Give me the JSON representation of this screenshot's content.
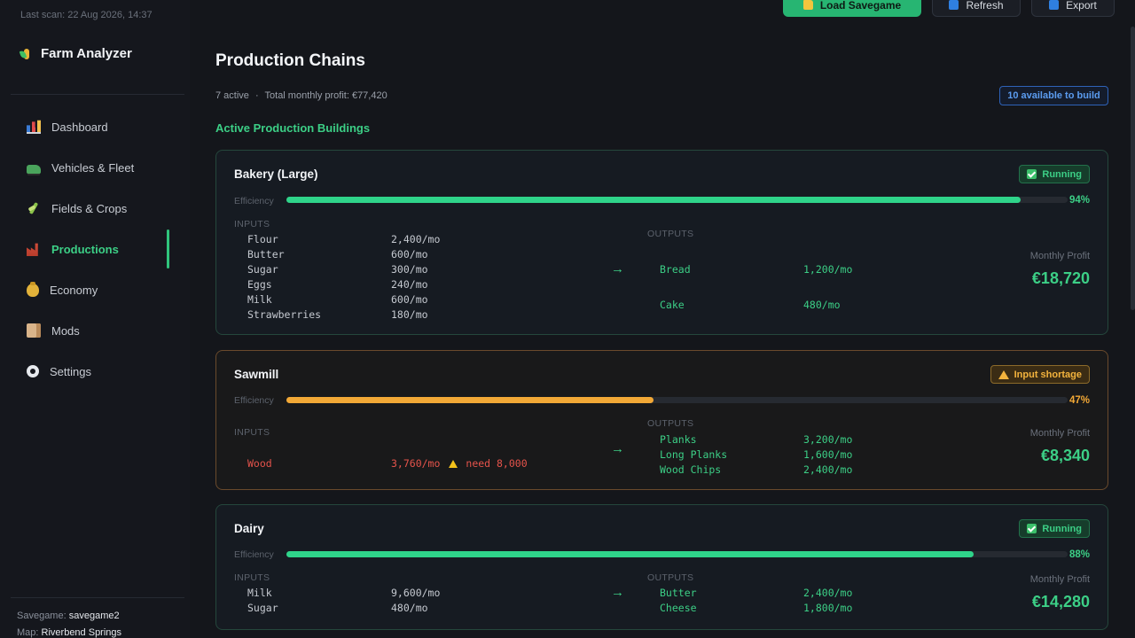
{
  "sidebar": {
    "last_scan": "Last scan: 22 Aug 2026, 14:37",
    "brand": "Farm Analyzer",
    "items": [
      {
        "label": "Dashboard",
        "icon": "chart-icon"
      },
      {
        "label": "Vehicles & Fleet",
        "icon": "tractor-icon"
      },
      {
        "label": "Fields & Crops",
        "icon": "wheat-icon"
      },
      {
        "label": "Productions",
        "icon": "factory-icon",
        "active": true
      },
      {
        "label": "Economy",
        "icon": "money-bag-icon"
      },
      {
        "label": "Mods",
        "icon": "box-icon"
      },
      {
        "label": "Settings",
        "icon": "gear-icon"
      }
    ],
    "savegame_label": "Savegame:",
    "savegame_value": "savegame2",
    "map_label": "Map:",
    "map_value": "Riverbend Springs"
  },
  "toolbar": {
    "load_label": "Load Savegame",
    "refresh_label": "Refresh",
    "export_label": "Export"
  },
  "main": {
    "title": "Production Chains",
    "active_count": "7 active",
    "separator": "·",
    "total_profit": "Total monthly profit: €77,420",
    "available_badge": "10 available to build",
    "section_title": "Active Production Buildings",
    "efficiency_label": "Efficiency",
    "inputs_label": "INPUTS",
    "outputs_label": "OUTPUTS",
    "profit_label": "Monthly Profit",
    "arrow": "→"
  },
  "buildings": [
    {
      "name": "Bakery (Large)",
      "status": "Running",
      "efficiency": 94,
      "efficiency_text": "94%",
      "inputs": [
        {
          "name": "Flour",
          "rate": "2,400/mo"
        },
        {
          "name": "Butter",
          "rate": "600/mo"
        },
        {
          "name": "Sugar",
          "rate": "300/mo"
        },
        {
          "name": "Eggs",
          "rate": "240/mo"
        },
        {
          "name": "Milk",
          "rate": "600/mo"
        },
        {
          "name": "Strawberries",
          "rate": "180/mo"
        }
      ],
      "outputs": [
        {
          "name": "Bread",
          "rate": "1,200/mo"
        },
        {
          "name": "Cake",
          "rate": "480/mo"
        }
      ],
      "profit": "€18,720"
    },
    {
      "name": "Sawmill",
      "status": "Input shortage",
      "efficiency": 47,
      "efficiency_text": "47%",
      "inputs": [
        {
          "name": "Wood",
          "rate": "3,760/mo",
          "need": "need 8,000"
        }
      ],
      "outputs": [
        {
          "name": "Planks",
          "rate": "3,200/mo"
        },
        {
          "name": "Long Planks",
          "rate": "1,600/mo"
        },
        {
          "name": "Wood Chips",
          "rate": "2,400/mo"
        }
      ],
      "profit": "€8,340"
    },
    {
      "name": "Dairy",
      "status": "Running",
      "efficiency": 88,
      "efficiency_text": "88%",
      "inputs": [
        {
          "name": "Milk",
          "rate": "9,600/mo"
        },
        {
          "name": "Sugar",
          "rate": "480/mo"
        }
      ],
      "outputs": [
        {
          "name": "Butter",
          "rate": "2,400/mo"
        },
        {
          "name": "Cheese",
          "rate": "1,800/mo"
        }
      ],
      "profit": "€14,280"
    }
  ]
}
